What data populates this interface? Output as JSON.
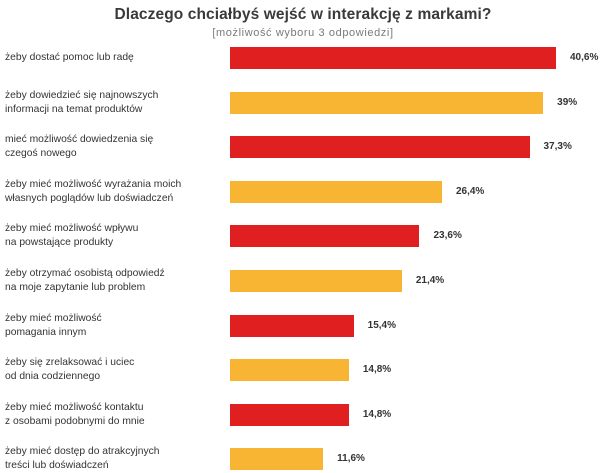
{
  "title": "Dlaczego chciałbyś wejść w interakcję z markami?",
  "subtitle": "[możliwość wyboru 3 odpowiedzi]",
  "colors": {
    "red": "#e02020",
    "yellow": "#f7b533"
  },
  "chart_data": {
    "type": "bar",
    "orientation": "horizontal",
    "title": "Dlaczego chciałbyś wejść w interakcję z markami?",
    "subtitle": "[możliwość wyboru 3 odpowiedzi]",
    "categories": [
      "żeby dostać pomoc lub radę",
      "żeby dowiedzieć się najnowszych\ninformacji na temat produktów",
      "mieć możliwość dowiedzenia się\nczegoś nowego",
      "żeby mieć możliwość wyrażania moich\nwłasnych poglądów lub doświadczeń",
      "żeby mieć możliwość wpływu\nna powstające produkty",
      "żeby otrzymać osobistą odpowiedź\nna moje zapytanie lub problem",
      " żeby mieć możliwość\npomagania innym",
      "żeby się zrelaksować i uciec\nod dnia codziennego",
      "żeby mieć możliwość kontaktu\nz osobami podobnymi do mnie",
      "żeby mieć dostęp do atrakcyjnych\ntreści lub doświadczeń"
    ],
    "values": [
      40.6,
      39,
      37.3,
      26.4,
      23.6,
      21.4,
      15.4,
      14.8,
      14.8,
      11.6
    ],
    "value_labels": [
      "40,6%",
      "39%",
      "37,3%",
      "26,4%",
      "23,6%",
      "21,4%",
      "15,4%",
      "14,8%",
      "14,8%",
      "11,6%"
    ],
    "bar_colors": [
      "red",
      "yellow",
      "red",
      "yellow",
      "red",
      "yellow",
      "red",
      "yellow",
      "red",
      "yellow"
    ],
    "xlim": [
      0,
      40.6
    ],
    "unit": "%"
  }
}
